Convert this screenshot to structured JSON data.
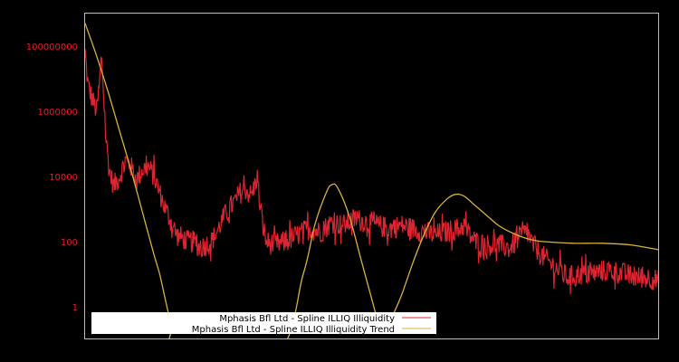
{
  "chart_data": {
    "type": "line",
    "title": "",
    "xlabel": "",
    "ylabel": "",
    "yscale": "log",
    "ylim": [
      0.03,
      3000000000
    ],
    "y_ticks": [
      {
        "label": "100000000",
        "value": 100000000
      },
      {
        "label": "1000000",
        "value": 1000000
      },
      {
        "label": "10000",
        "value": 10000
      },
      {
        "label": "100",
        "value": 100
      },
      {
        "label": "1",
        "value": 1
      }
    ],
    "x_range": [
      0,
      100
    ],
    "grid": false,
    "legend_position": "lower-left",
    "background": "#000000",
    "frame_color": "#bbbbbb",
    "series": [
      {
        "name": "Mphasis Bfl Ltd - Spline ILLIQ Illiquidity",
        "color": "#dd2430",
        "noise": 0.35,
        "log10_points": [
          [
            0,
            7.8
          ],
          [
            0.5,
            6.8
          ],
          [
            1.2,
            6.4
          ],
          [
            2,
            6.0
          ],
          [
            2.5,
            6.8
          ],
          [
            2.8,
            7.6
          ],
          [
            3.0,
            7.3
          ],
          [
            3.3,
            6.3
          ],
          [
            3.6,
            5.2
          ],
          [
            4.2,
            4.2
          ],
          [
            5,
            3.7
          ],
          [
            6,
            4.0
          ],
          [
            7,
            4.5
          ],
          [
            8,
            4.3
          ],
          [
            9,
            3.9
          ],
          [
            10,
            4.2
          ],
          [
            11,
            4.3
          ],
          [
            12,
            4.0
          ],
          [
            13,
            3.5
          ],
          [
            14,
            3.0
          ],
          [
            15,
            2.6
          ],
          [
            16,
            2.2
          ],
          [
            17,
            2.1
          ],
          [
            18,
            2.0
          ],
          [
            19,
            2.0
          ],
          [
            20,
            1.8
          ],
          [
            21,
            1.9
          ],
          [
            22,
            2.0
          ],
          [
            23,
            2.3
          ],
          [
            24,
            2.7
          ],
          [
            25,
            3.0
          ],
          [
            26,
            3.2
          ],
          [
            27,
            3.5
          ],
          [
            28,
            3.6
          ],
          [
            29,
            3.4
          ],
          [
            30,
            4.0
          ],
          [
            30.5,
            3.0
          ],
          [
            31.5,
            2.0
          ],
          [
            33,
            1.9
          ],
          [
            35,
            2.0
          ],
          [
            37,
            2.2
          ],
          [
            39,
            2.4
          ],
          [
            41,
            2.3
          ],
          [
            43,
            2.6
          ],
          [
            45,
            2.5
          ],
          [
            47,
            2.7
          ],
          [
            49,
            2.6
          ],
          [
            51,
            2.5
          ],
          [
            53,
            2.4
          ],
          [
            55,
            2.5
          ],
          [
            57,
            2.4
          ],
          [
            59,
            2.3
          ],
          [
            61,
            2.2
          ],
          [
            63,
            2.3
          ],
          [
            65,
            2.4
          ],
          [
            66,
            2.5
          ],
          [
            67,
            2.2
          ],
          [
            68,
            2.0
          ],
          [
            70,
            1.9
          ],
          [
            72,
            1.9
          ],
          [
            74,
            1.8
          ],
          [
            75,
            2.0
          ],
          [
            76,
            2.2
          ],
          [
            77,
            2.3
          ],
          [
            78,
            1.9
          ],
          [
            80,
            1.5
          ],
          [
            82,
            1.2
          ],
          [
            84,
            0.9
          ],
          [
            86,
            1.0
          ],
          [
            88,
            1.0
          ],
          [
            90,
            1.1
          ],
          [
            92,
            1.1
          ],
          [
            94,
            1.0
          ],
          [
            96,
            0.9
          ],
          [
            98,
            0.9
          ],
          [
            100,
            0.8
          ]
        ]
      },
      {
        "name": "Mphasis Bfl Ltd - Spline ILLIQ Illiquidity Trend",
        "color": "#d7b23a",
        "noise": 0,
        "log10_points": [
          [
            0,
            8.7
          ],
          [
            2,
            7.7
          ],
          [
            4,
            6.6
          ],
          [
            6,
            5.4
          ],
          [
            8,
            4.2
          ],
          [
            10,
            2.9
          ],
          [
            12,
            1.6
          ],
          [
            13,
            1.0
          ],
          [
            14,
            0.2
          ],
          [
            15,
            -0.6
          ],
          [
            16,
            -1.5
          ],
          [
            33,
            -1.5
          ],
          [
            38,
            1.0
          ],
          [
            40,
            2.5
          ],
          [
            42,
            3.5
          ],
          [
            43,
            3.75
          ],
          [
            44,
            3.65
          ],
          [
            46,
            2.8
          ],
          [
            48,
            1.5
          ],
          [
            50,
            0.2
          ],
          [
            51,
            -0.4
          ],
          [
            52,
            -0.6
          ],
          [
            53,
            -0.45
          ],
          [
            55,
            0.3
          ],
          [
            57,
            1.3
          ],
          [
            59,
            2.2
          ],
          [
            61,
            2.9
          ],
          [
            63,
            3.3
          ],
          [
            64.5,
            3.45
          ],
          [
            66,
            3.4
          ],
          [
            68,
            3.1
          ],
          [
            70,
            2.8
          ],
          [
            72,
            2.5
          ],
          [
            74,
            2.3
          ],
          [
            76,
            2.15
          ],
          [
            78,
            2.05
          ],
          [
            80,
            2.0
          ],
          [
            85,
            1.95
          ],
          [
            90,
            1.95
          ],
          [
            95,
            1.9
          ],
          [
            100,
            1.75
          ]
        ]
      }
    ]
  },
  "legend": {
    "items": [
      {
        "label": "Mphasis Bfl Ltd - Spline ILLIQ Illiquidity",
        "color": "#dd2430"
      },
      {
        "label": "Mphasis Bfl Ltd - Spline ILLIQ Illiquidity Trend",
        "color": "#d7b23a"
      }
    ]
  }
}
